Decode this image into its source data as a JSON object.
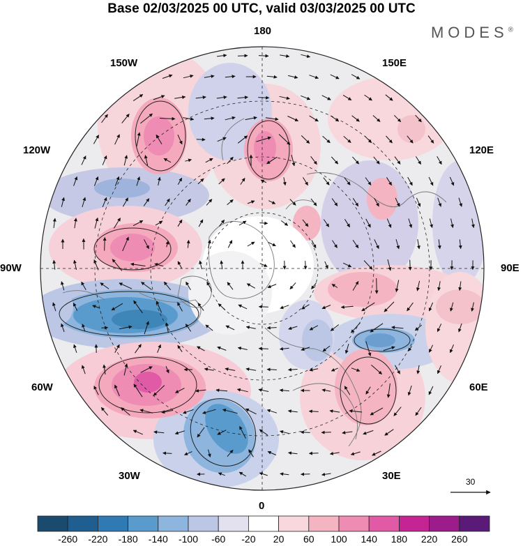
{
  "title": "Base 02/03/2025 00 UTC, valid 03/03/2025 00 UTC",
  "brand": "MODES",
  "brand_mark": "®",
  "longitude_labels": {
    "top": "180",
    "bottom": "0",
    "left": "90W",
    "right": "90E",
    "upper_left_1": "150W",
    "upper_left_2": "120W",
    "upper_right_1": "150E",
    "upper_right_2": "120E",
    "lower_left_1": "60W",
    "lower_left_2": "30W",
    "lower_right_1": "60E",
    "lower_right_2": "30E"
  },
  "reference_vector": "30",
  "colorbar": {
    "ticks": [
      "-260",
      "-220",
      "-180",
      "-140",
      "-100",
      "-60",
      "-20",
      "20",
      "60",
      "100",
      "140",
      "180",
      "220",
      "260"
    ],
    "colors": [
      "#1a4a6e",
      "#1f5e8f",
      "#2f7ab3",
      "#5a9bcd",
      "#8db5de",
      "#bcc7e6",
      "#e3e1f0",
      "#ffffff",
      "#f8d8dc",
      "#f4b4c2",
      "#ee8cb4",
      "#e05aa6",
      "#c42592",
      "#9b1c8a",
      "#5a1a78"
    ]
  },
  "anomaly_features": [
    {
      "color": "#f28ab6",
      "name": "pink-high-150w"
    },
    {
      "color": "#f28ab6",
      "name": "pink-high-180"
    },
    {
      "color": "#f08ab8",
      "name": "pink-high-90w"
    },
    {
      "color": "#3f86b8",
      "name": "blue-low-70w"
    },
    {
      "color": "#e87fc0",
      "name": "pink-high-45w"
    },
    {
      "color": "#5d97c6",
      "name": "blue-low-20w"
    },
    {
      "color": "#7ea6d2",
      "name": "blue-low-60e"
    },
    {
      "color": "#f4a9b8",
      "name": "pink-high-30e"
    },
    {
      "color": "#f4b0bd",
      "name": "pink-high-90e"
    },
    {
      "color": "#f3b2bf",
      "name": "pink-high-120e"
    },
    {
      "color": "#c6c6e2",
      "name": "lavender-low-150w"
    },
    {
      "color": "#f8d8dc",
      "name": "pink-light-150e"
    }
  ]
}
